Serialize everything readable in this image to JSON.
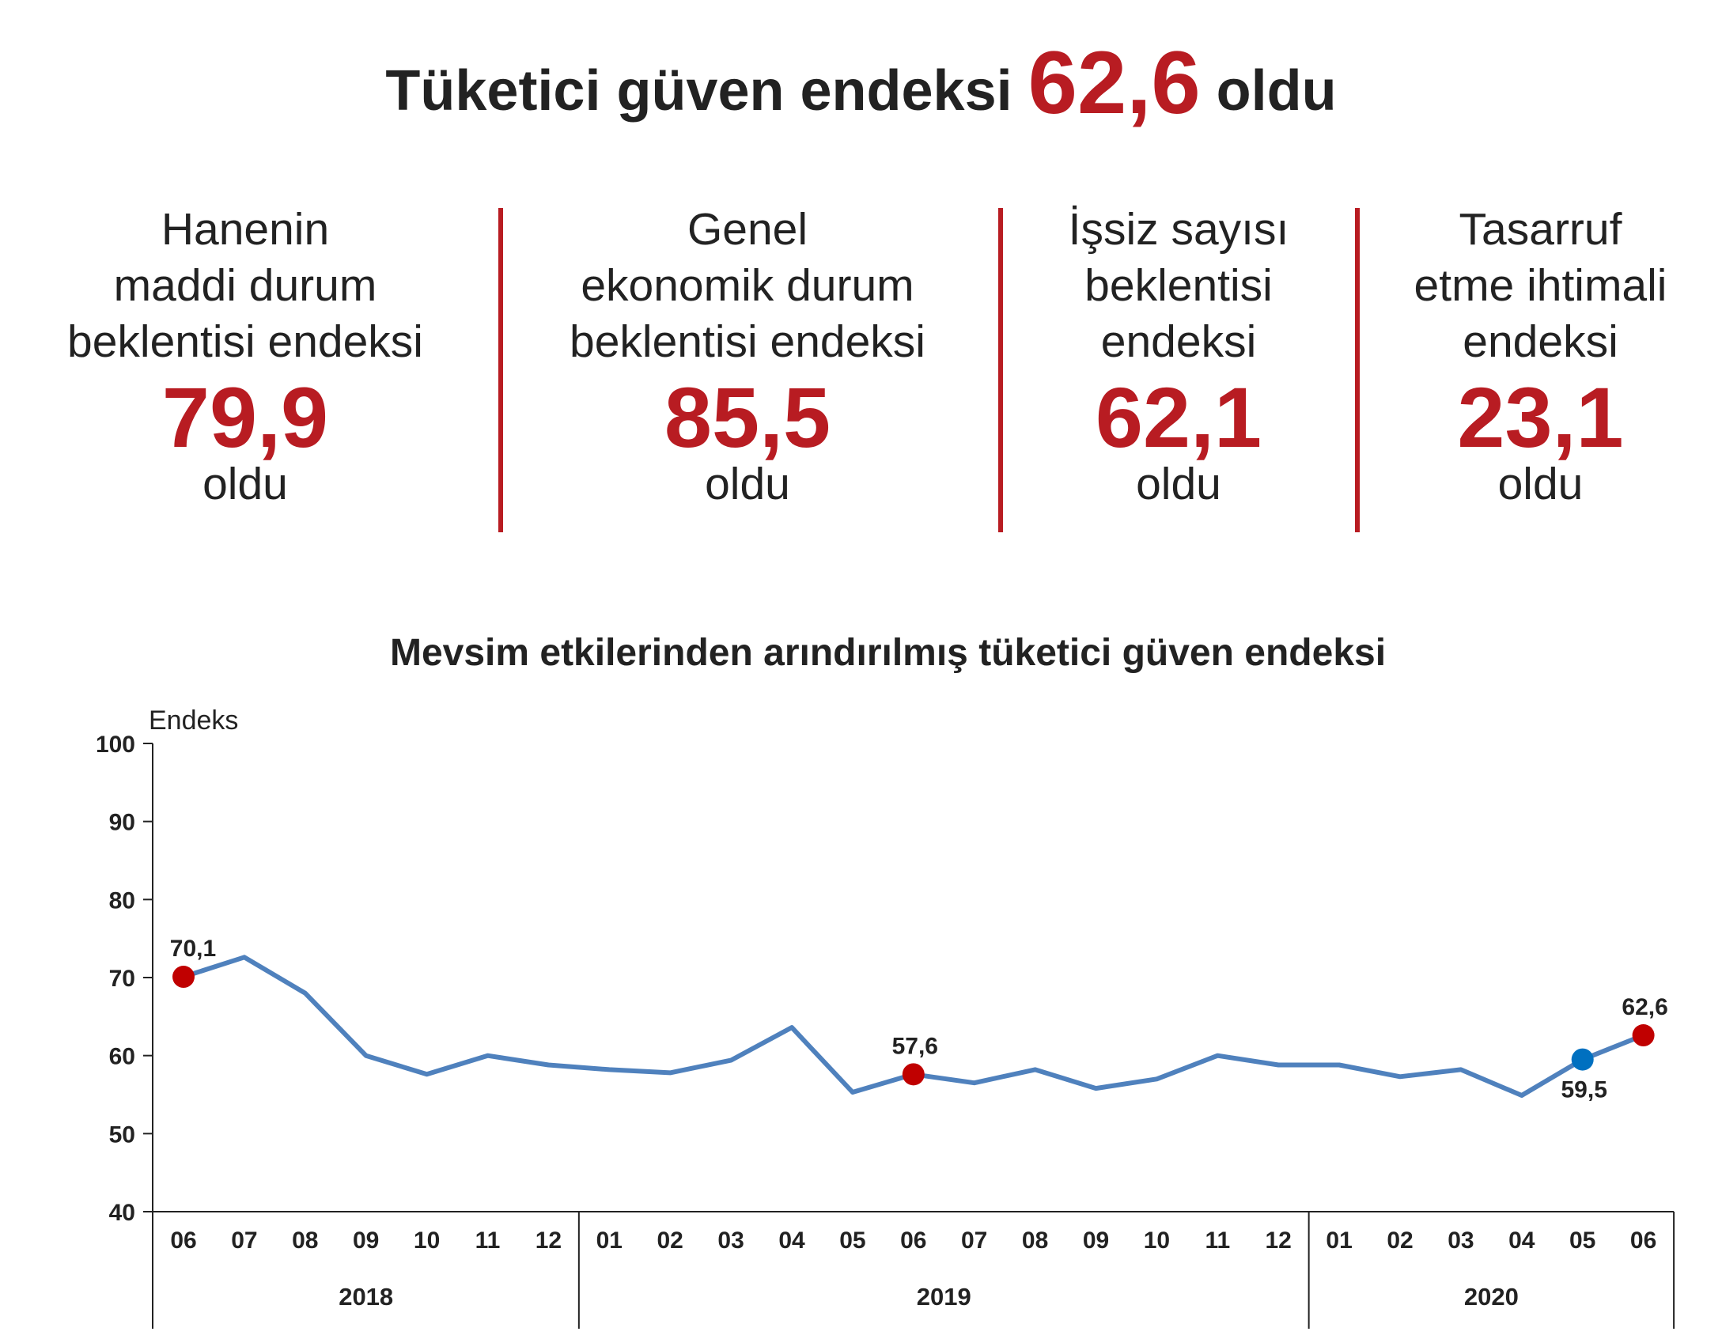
{
  "headline": {
    "prefix": "Tüketici güven endeksi",
    "value": "62,6",
    "suffix": "oldu"
  },
  "cards": [
    {
      "lines": [
        "Hanenin",
        "maddi durum",
        "beklentisi endeksi"
      ],
      "value": "79,9",
      "suffix": "oldu"
    },
    {
      "lines": [
        "Genel",
        "ekonomik durum",
        "beklentisi endeksi"
      ],
      "value": "85,5",
      "suffix": "oldu"
    },
    {
      "lines": [
        "İşsiz sayısı",
        "beklentisi",
        "endeksi"
      ],
      "value": "62,1",
      "suffix": "oldu"
    },
    {
      "lines": [
        "Tasarruf",
        "etme ihtimali",
        "endeksi"
      ],
      "value": "23,1",
      "suffix": "oldu"
    }
  ],
  "colors": {
    "accent": "#b81c22",
    "line": "#4f81bd",
    "marker_red": "#c00000",
    "marker_blue": "#0070c0"
  },
  "chart_data": {
    "type": "line",
    "title": "Mevsim etkilerinden arındırılmış tüketici güven endeksi",
    "ylabel": "Endeks",
    "ylim": [
      40,
      100
    ],
    "yticks": [
      40,
      50,
      60,
      70,
      80,
      90,
      100
    ],
    "categories": [
      "06",
      "07",
      "08",
      "09",
      "10",
      "11",
      "12",
      "01",
      "02",
      "03",
      "04",
      "05",
      "06",
      "07",
      "08",
      "09",
      "10",
      "11",
      "12",
      "01",
      "02",
      "03",
      "04",
      "05",
      "06"
    ],
    "year_groups": [
      {
        "label": "2018",
        "count": 7
      },
      {
        "label": "2019",
        "count": 12
      },
      {
        "label": "2020",
        "count": 6
      }
    ],
    "series": [
      {
        "values": [
          70.1,
          72.6,
          68.0,
          60.0,
          57.6,
          60.0,
          58.8,
          58.2,
          57.8,
          59.4,
          63.6,
          55.3,
          57.6,
          56.5,
          58.2,
          55.8,
          57.0,
          60.0,
          58.8,
          58.8,
          57.3,
          58.2,
          54.9,
          59.5,
          62.6
        ]
      }
    ],
    "highlights": [
      {
        "index": 0,
        "label": "70,1",
        "color": "red",
        "position": "above"
      },
      {
        "index": 12,
        "label": "57,6",
        "color": "red",
        "position": "above"
      },
      {
        "index": 23,
        "label": "59,5",
        "color": "blue",
        "position": "below"
      },
      {
        "index": 24,
        "label": "62,6",
        "color": "red",
        "position": "above"
      }
    ],
    "grid": false
  }
}
